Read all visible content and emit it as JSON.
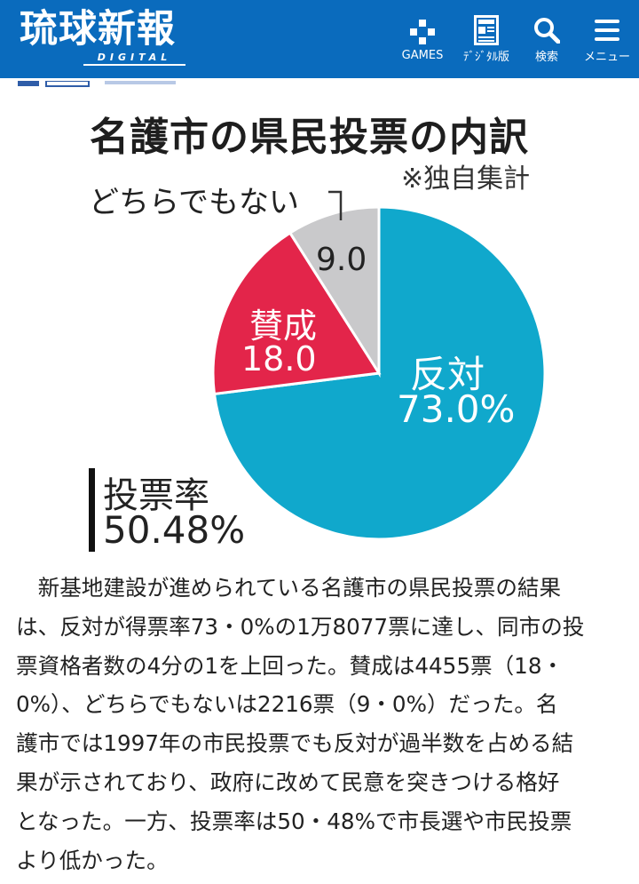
{
  "header": {
    "logo_main": "琉球新報",
    "logo_sub": "DIGITAL",
    "nav": [
      {
        "label": "GAMES",
        "icon": "game-controller-icon"
      },
      {
        "label": "ﾃﾞｼﾞﾀﾙ版",
        "icon": "newspaper-icon"
      },
      {
        "label": "検索",
        "icon": "search-icon"
      },
      {
        "label": "メニュー",
        "icon": "hamburger-menu-icon"
      }
    ],
    "colors": {
      "background": "#0a6bbd",
      "text": "#ffffff"
    }
  },
  "infographic": {
    "title": "名護市の県民投票の内訳",
    "note": "※独自集計",
    "neither_label": "どちらでもない",
    "turnout_label": "投票率",
    "turnout_value": "50.48%",
    "chart_data": {
      "type": "pie",
      "slices": [
        {
          "label": "反対",
          "value": 73.0,
          "display": "73.0%",
          "color": "#10a8cc"
        },
        {
          "label": "賛成",
          "value": 18.0,
          "display": "18.0",
          "color": "#e3254a"
        },
        {
          "label": "どちらでもない",
          "value": 9.0,
          "display": "9.0",
          "color": "#c9c9cb"
        }
      ]
    }
  },
  "article": {
    "lines": [
      "　新基地建設が進められている名護市の県民投票の結果",
      "は、反対が得票率73・0%の1万8077票に達し、同市の投",
      "票資格者数の4分の1を上回った。賛成は4455票（18・",
      "0%）、どちらでもないは2216票（9・0%）だった。名",
      "護市では1997年の市民投票でも反対が過半数を占める結",
      "果が示されており、政府に改めて民意を突きつける格好",
      "となった。一方、投票率は50・48%で市長選や市民投票",
      "より低かった。"
    ]
  }
}
